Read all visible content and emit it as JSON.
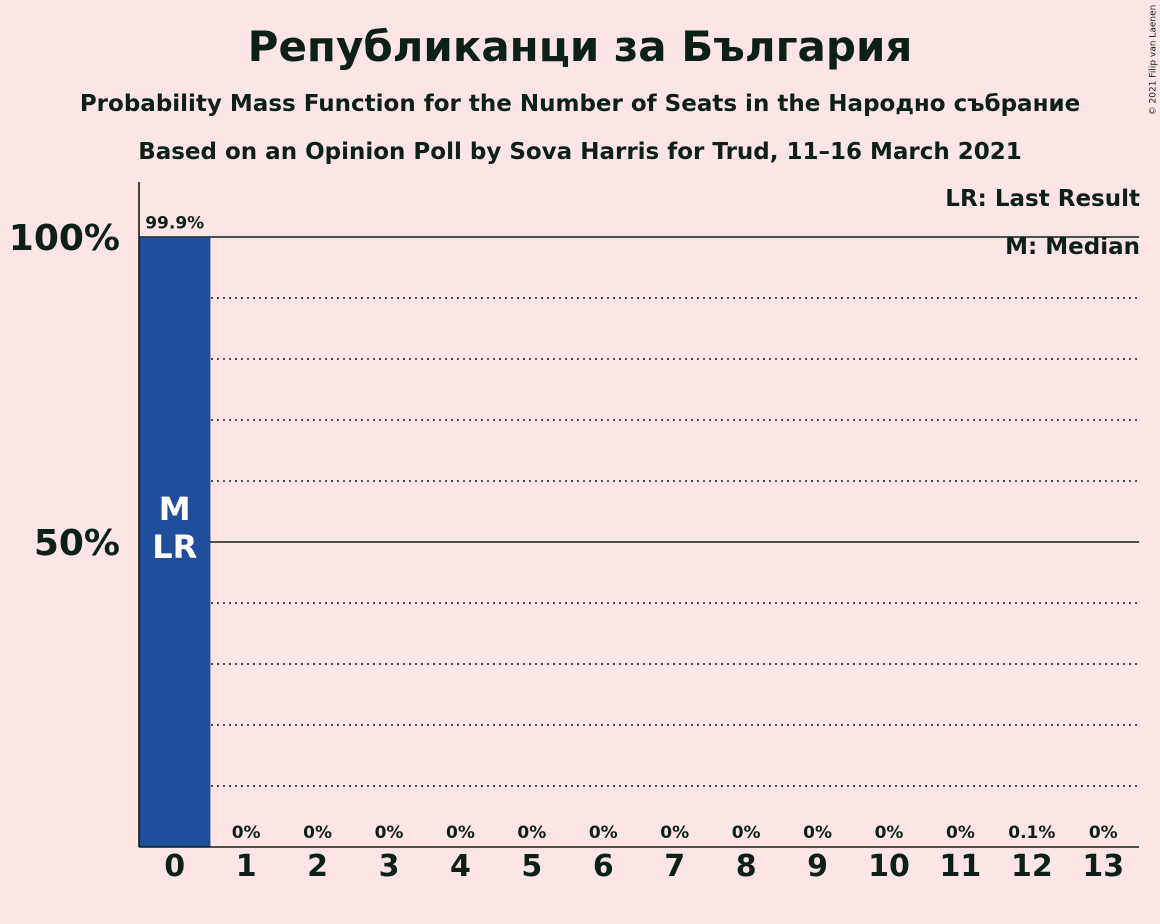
{
  "title": "Републиканци за България",
  "subtitle1": "Probability Mass Function for the Number of Seats in the Народно събрание",
  "subtitle2": "Based on an Opinion Poll by Sova Harris for Trud, 11–16 March 2021",
  "copyright": "© 2021 Filip van Laenen",
  "legend": {
    "last_result": "LR: Last Result",
    "median": "M: Median"
  },
  "colors": {
    "background": "#fee5e5",
    "bar": "#204e9d",
    "text": "#0b2016"
  },
  "chart_data": {
    "type": "bar",
    "categories": [
      "0",
      "1",
      "2",
      "3",
      "4",
      "5",
      "6",
      "7",
      "8",
      "9",
      "10",
      "11",
      "12",
      "13"
    ],
    "values": [
      99.9,
      0,
      0,
      0,
      0,
      0,
      0,
      0,
      0,
      0,
      0,
      0,
      0.1,
      0
    ],
    "data_labels": [
      "99.9%",
      "0%",
      "0%",
      "0%",
      "0%",
      "0%",
      "0%",
      "0%",
      "0%",
      "0%",
      "0%",
      "0%",
      "0.1%",
      "0%"
    ],
    "ylim": [
      0,
      100
    ],
    "yticks": [
      {
        "value": 50,
        "label": "50%"
      },
      {
        "value": 100,
        "label": "100%"
      }
    ],
    "minor_grid_step": 10,
    "bar_annotation": {
      "category": "0",
      "lines": [
        "M",
        "LR"
      ]
    },
    "xlabel": "",
    "ylabel": ""
  }
}
